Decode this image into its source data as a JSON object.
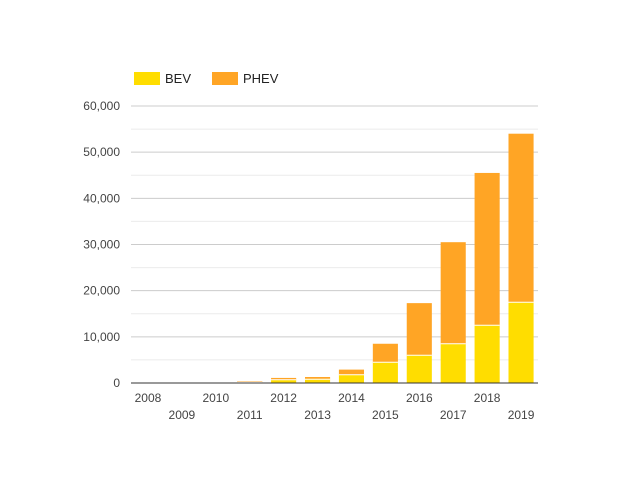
{
  "chart_data": {
    "type": "bar",
    "stacked": true,
    "title": "",
    "xlabel": "",
    "ylabel": "",
    "categories": [
      "2008",
      "2009",
      "2010",
      "2011",
      "2012",
      "2013",
      "2014",
      "2015",
      "2016",
      "2017",
      "2018",
      "2019"
    ],
    "series": [
      {
        "name": "BEV",
        "color": "#ffdd00",
        "values": [
          10,
          20,
          50,
          200,
          700,
          800,
          1800,
          4500,
          6000,
          8500,
          12500,
          17500
        ]
      },
      {
        "name": "PHEV",
        "color": "#ffa525",
        "values": [
          0,
          0,
          50,
          200,
          400,
          500,
          1100,
          4000,
          11300,
          22000,
          33000,
          36500
        ]
      }
    ],
    "ylim": [
      0,
      60000
    ],
    "yticks": [
      0,
      10000,
      20000,
      30000,
      40000,
      50000,
      60000
    ],
    "ytick_labels": [
      "0",
      "10,000",
      "20,000",
      "30,000",
      "40,000",
      "50,000",
      "60,000"
    ],
    "grid": true,
    "legend_position": "top-left"
  },
  "colors": {
    "gridline": "#cccccc",
    "minor_gridline": "#ebebeb",
    "axis": "#333333"
  }
}
